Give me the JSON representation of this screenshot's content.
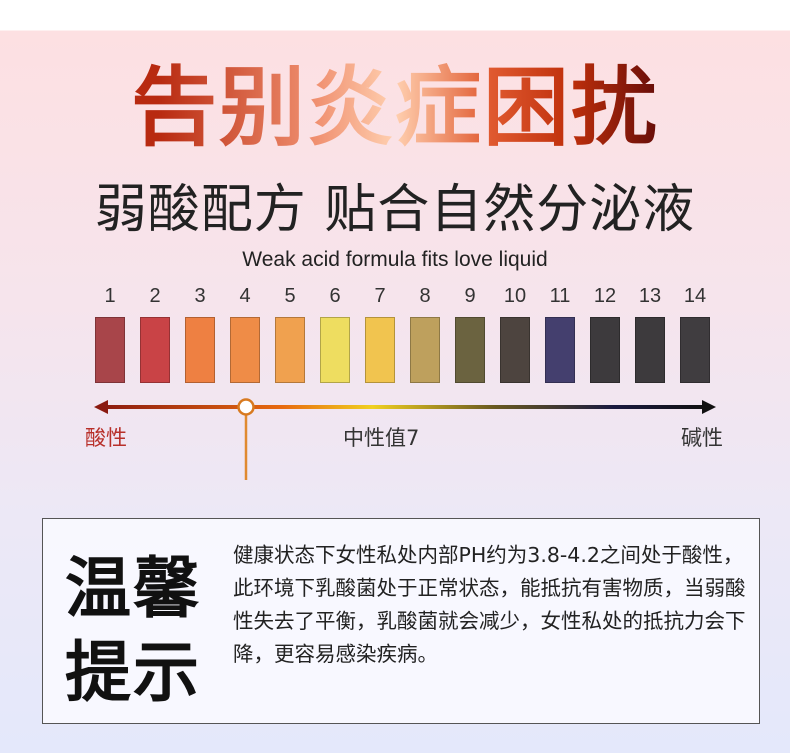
{
  "title": "告别炎症困扰",
  "subtitle": "弱酸配方 贴合自然分泌液",
  "english": "Weak acid formula fits love liquid",
  "ph_scale": {
    "numbers": [
      "1",
      "2",
      "3",
      "4",
      "5",
      "6",
      "7",
      "8",
      "9",
      "10",
      "11",
      "12",
      "13",
      "14"
    ],
    "colors": [
      "#a8454a",
      "#c94346",
      "#ee8042",
      "#ef8c47",
      "#f0a14f",
      "#eedd60",
      "#f1c44f",
      "#bea05d",
      "#6b6340",
      "#4d443f",
      "#443f6e",
      "#3d3a3d",
      "#3d3a3d",
      "#403d40"
    ],
    "marker_value": 4,
    "acid_label": "酸性",
    "neutral_label": "中性值7",
    "alkaline_label": "碱性",
    "acid_color": "#b8302a"
  },
  "tip": {
    "heading_line1": "温馨",
    "heading_line2": "提示",
    "body": "健康状态下女性私处内部PH约为3.8-4.2之间处于酸性，此环境下乳酸菌处于正常状态，能抵抗有害物质，当弱酸性失去了平衡，乳酸菌就会减少，女性私处的抵抗力会下降，更容易感染疾病。"
  }
}
